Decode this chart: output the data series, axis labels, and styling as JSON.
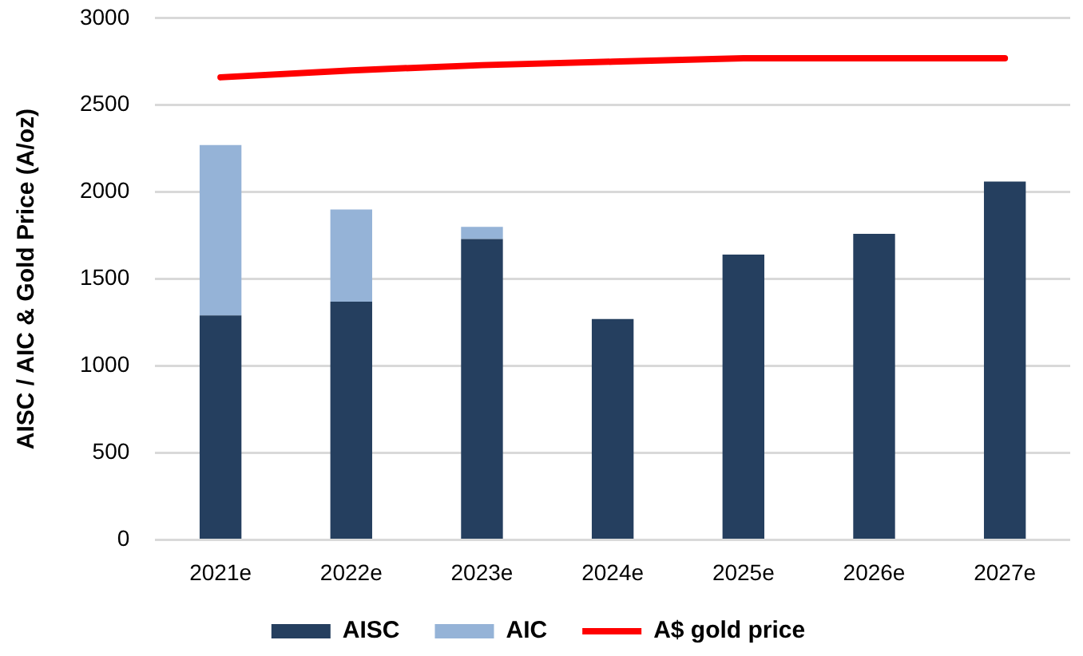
{
  "chart_data": {
    "type": "bar",
    "ylabel": "AISC / AIC & Gold Price (A/oz)",
    "categories": [
      "2021e",
      "2022e",
      "2023e",
      "2024e",
      "2025e",
      "2026e",
      "2027e"
    ],
    "stacked": true,
    "series": [
      {
        "name": "AISC",
        "color": "#253f5f",
        "values": [
          1290,
          1370,
          1730,
          1270,
          1640,
          1760,
          2060
        ]
      },
      {
        "name": "AIC",
        "color": "#95b3d7",
        "values": [
          980,
          530,
          70,
          null,
          null,
          null,
          null
        ]
      },
      {
        "name": "A$ gold price",
        "type": "line",
        "color": "#ff0000",
        "values": [
          2660,
          2700,
          2730,
          2750,
          2770,
          2770,
          2770
        ]
      }
    ],
    "ylim": [
      0,
      3000
    ],
    "yticks": [
      0,
      500,
      1000,
      1500,
      2000,
      2500,
      3000
    ],
    "grid": "y",
    "legend": "bottom",
    "marker": "none",
    "line_style": "solid"
  }
}
